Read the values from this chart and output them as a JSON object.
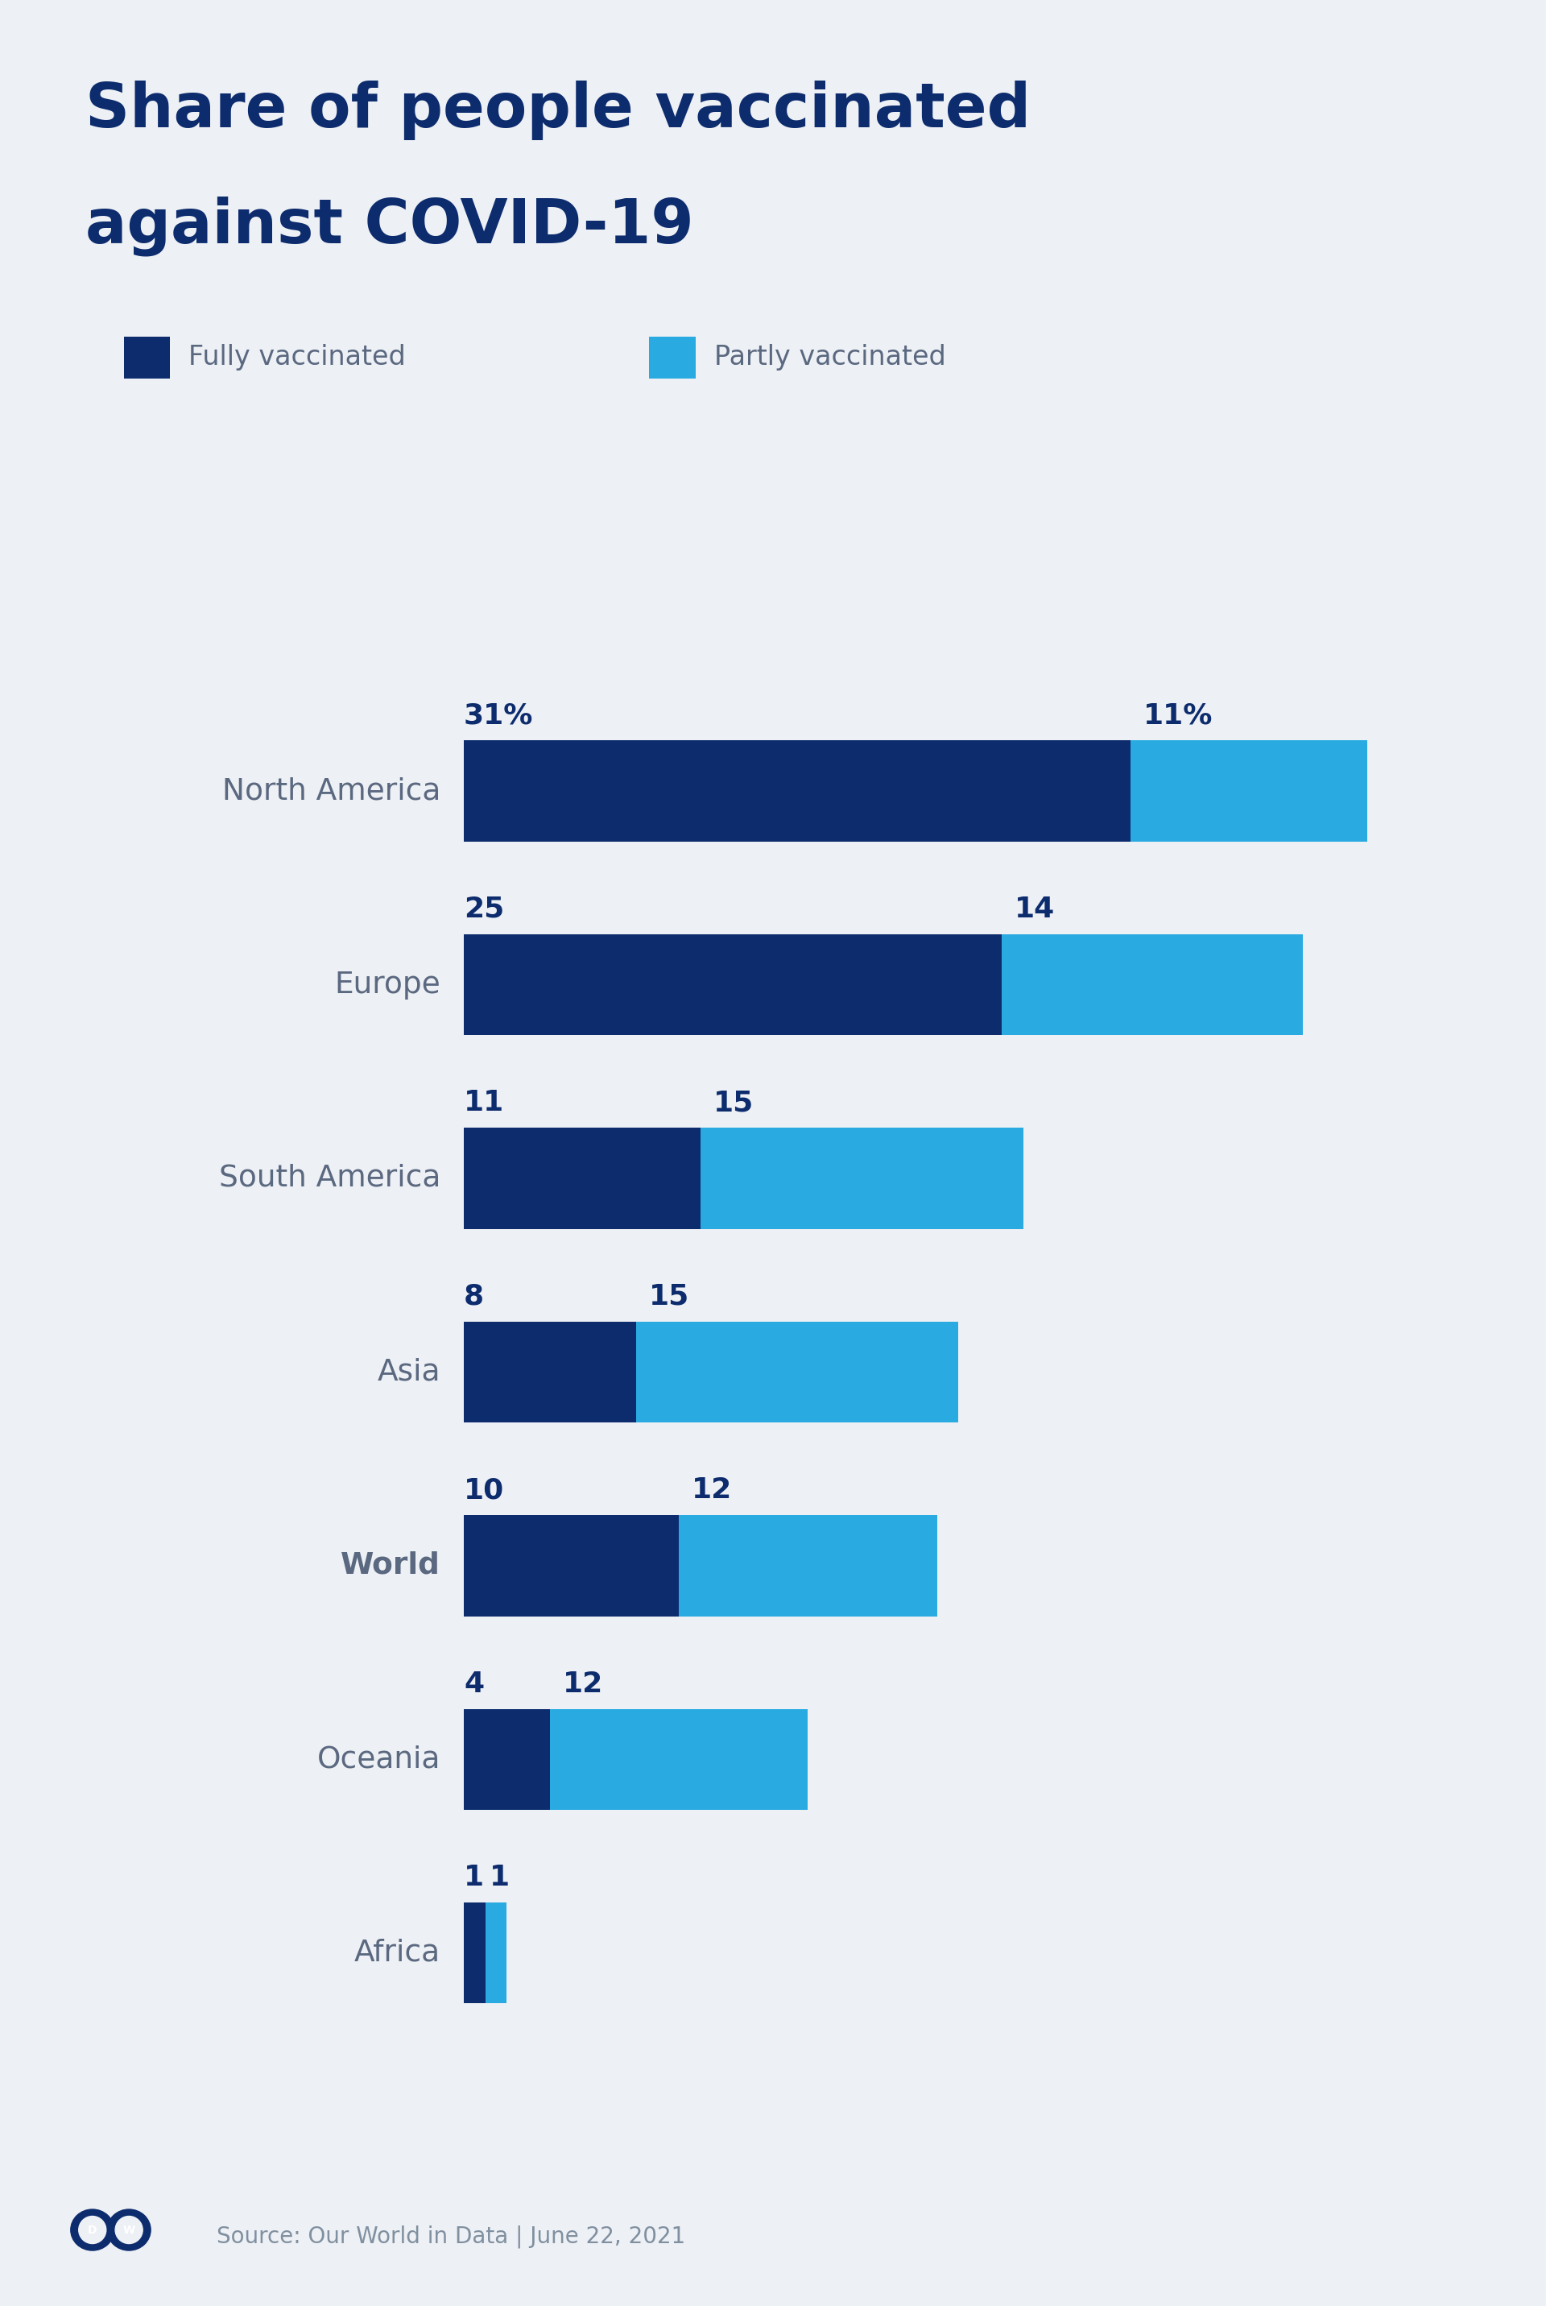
{
  "title_line1": "Share of people vaccinated",
  "title_line2": "against COVID-19",
  "title_color": "#0d2c6e",
  "background_color": "#edf0f4",
  "regions": [
    "North America",
    "Europe",
    "South America",
    "Asia",
    "World",
    "Oceania",
    "Africa"
  ],
  "fully_vaccinated": [
    31,
    25,
    11,
    8,
    10,
    4,
    1
  ],
  "partly_vaccinated": [
    11,
    14,
    15,
    15,
    12,
    12,
    1
  ],
  "fully_labels": [
    "31%",
    "25",
    "11",
    "8",
    "10",
    "4",
    "1"
  ],
  "partly_labels": [
    "11%",
    "14",
    "15",
    "15",
    "12",
    "12",
    "1"
  ],
  "color_full": "#0d2c6e",
  "color_partly": "#29aae1",
  "world_index": 4,
  "source_text": "Source: Our World in Data | June 22, 2021",
  "source_color": "#8090a0",
  "legend_fully": "Fully vaccinated",
  "legend_partly": "Partly vaccinated",
  "bar_height": 0.52,
  "xlim": [
    0,
    46
  ],
  "region_label_color": "#5a6880",
  "number_label_color": "#0d2c6e"
}
